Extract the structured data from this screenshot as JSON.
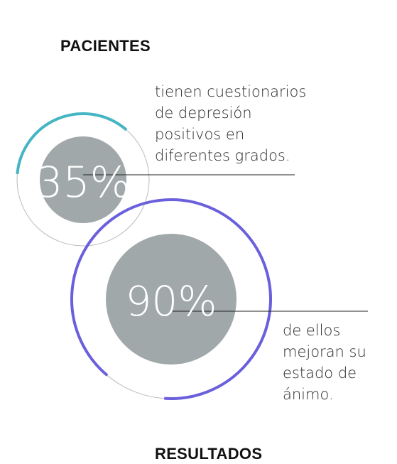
{
  "headings": {
    "top": "PACIENTES",
    "bottom": "RESULTADOS"
  },
  "stats": [
    {
      "value_label": "35%",
      "percent": 35,
      "text_lines": [
        "tienen cuestionarios",
        "de depresión",
        "positivos en",
        "diferentes grados."
      ],
      "accent_color": "#45b5c4"
    },
    {
      "value_label": "90%",
      "percent": 90,
      "text_lines": [
        "de ellos",
        "mejoran su",
        "estado de",
        "ánimo."
      ],
      "accent_color": "#6a5fdc"
    }
  ],
  "colors": {
    "disc": "#a0a8a9",
    "track": "#bbbbbb",
    "leader": "#222222"
  }
}
